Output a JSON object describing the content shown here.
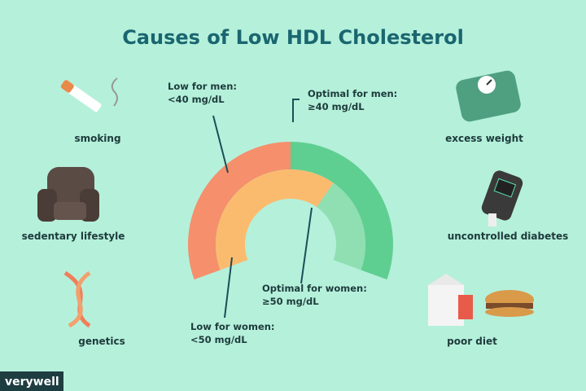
{
  "header": {
    "title": "Causes of Low HDL Cholesterol"
  },
  "gauge": {
    "low_men": {
      "line1": "Low for men:",
      "line2": "<40 mg/dL"
    },
    "optimal_men": {
      "line1": "Optimal for men:",
      "line2": "≥40 mg/dL"
    },
    "optimal_women": {
      "line1": "Optimal for women:",
      "line2": "≥50 mg/dL"
    },
    "low_women": {
      "line1": "Low for women:",
      "line2": "<50 mg/dL"
    }
  },
  "causes": {
    "left": [
      "smoking",
      "sedentary lifestyle",
      "genetics"
    ],
    "right": [
      "excess weight",
      "uncontrolled diabetes",
      "poor diet"
    ]
  },
  "brand": "verywell"
}
